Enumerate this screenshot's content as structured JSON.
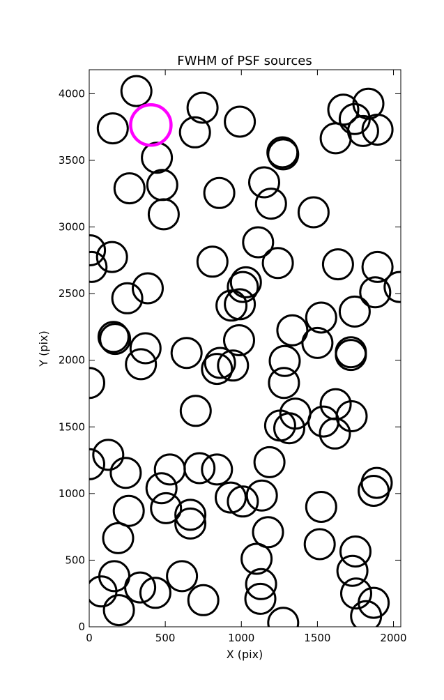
{
  "chart_data": {
    "type": "scatter",
    "title": "FWHM of PSF sources",
    "xlabel": "X (pix)",
    "ylabel": "Y (pix)",
    "xlim": [
      0,
      2048
    ],
    "ylim": [
      0,
      4180
    ],
    "xticks": [
      0,
      500,
      1000,
      1500,
      2000
    ],
    "yticks": [
      0,
      500,
      1000,
      1500,
      2000,
      2500,
      3000,
      3500,
      4000
    ],
    "grid": false,
    "marker": "open-circle",
    "series": [
      {
        "color": "#000000",
        "points": [
          {
            "x": 310,
            "y": 4020
          },
          {
            "x": 745,
            "y": 3895
          },
          {
            "x": 990,
            "y": 3790
          },
          {
            "x": 155,
            "y": 3740
          },
          {
            "x": 695,
            "y": 3710
          },
          {
            "x": 445,
            "y": 3520
          },
          {
            "x": 1270,
            "y": 3560
          },
          {
            "x": 1275,
            "y": 3545
          },
          {
            "x": 1670,
            "y": 3880
          },
          {
            "x": 1745,
            "y": 3810
          },
          {
            "x": 1835,
            "y": 3925
          },
          {
            "x": 1800,
            "y": 3720
          },
          {
            "x": 1895,
            "y": 3730
          },
          {
            "x": 1620,
            "y": 3665
          },
          {
            "x": 265,
            "y": 3290
          },
          {
            "x": 480,
            "y": 3315
          },
          {
            "x": 855,
            "y": 3255
          },
          {
            "x": 1150,
            "y": 3335
          },
          {
            "x": 1195,
            "y": 3175
          },
          {
            "x": 490,
            "y": 3095
          },
          {
            "x": 1475,
            "y": 3110
          },
          {
            "x": 5,
            "y": 2825
          },
          {
            "x": 15,
            "y": 2700
          },
          {
            "x": 150,
            "y": 2775
          },
          {
            "x": 810,
            "y": 2740
          },
          {
            "x": 1110,
            "y": 2885
          },
          {
            "x": 1240,
            "y": 2730
          },
          {
            "x": 1635,
            "y": 2720
          },
          {
            "x": 1895,
            "y": 2700
          },
          {
            "x": 2040,
            "y": 2550
          },
          {
            "x": 385,
            "y": 2540
          },
          {
            "x": 250,
            "y": 2465
          },
          {
            "x": 1030,
            "y": 2585
          },
          {
            "x": 1010,
            "y": 2550
          },
          {
            "x": 935,
            "y": 2410
          },
          {
            "x": 990,
            "y": 2420
          },
          {
            "x": 1880,
            "y": 2510
          },
          {
            "x": 1745,
            "y": 2365
          },
          {
            "x": 1525,
            "y": 2320
          },
          {
            "x": 1335,
            "y": 2225
          },
          {
            "x": 160,
            "y": 2175
          },
          {
            "x": 170,
            "y": 2160
          },
          {
            "x": 370,
            "y": 2090
          },
          {
            "x": 340,
            "y": 1970
          },
          {
            "x": 640,
            "y": 2055
          },
          {
            "x": 985,
            "y": 2150
          },
          {
            "x": 1500,
            "y": 2130
          },
          {
            "x": 1720,
            "y": 2060
          },
          {
            "x": 1720,
            "y": 2040
          },
          {
            "x": 1285,
            "y": 1995
          },
          {
            "x": 860,
            "y": 1980
          },
          {
            "x": 840,
            "y": 1935
          },
          {
            "x": 945,
            "y": 1960
          },
          {
            "x": 0,
            "y": 1830
          },
          {
            "x": 1280,
            "y": 1830
          },
          {
            "x": 700,
            "y": 1620
          },
          {
            "x": 1355,
            "y": 1600
          },
          {
            "x": 1620,
            "y": 1670
          },
          {
            "x": 1725,
            "y": 1580
          },
          {
            "x": 1540,
            "y": 1540
          },
          {
            "x": 1255,
            "y": 1510
          },
          {
            "x": 1315,
            "y": 1490
          },
          {
            "x": 1615,
            "y": 1450
          },
          {
            "x": 0,
            "y": 1220
          },
          {
            "x": 125,
            "y": 1290
          },
          {
            "x": 240,
            "y": 1155
          },
          {
            "x": 530,
            "y": 1180
          },
          {
            "x": 725,
            "y": 1190
          },
          {
            "x": 840,
            "y": 1180
          },
          {
            "x": 1185,
            "y": 1235
          },
          {
            "x": 475,
            "y": 1040
          },
          {
            "x": 1890,
            "y": 1080
          },
          {
            "x": 1870,
            "y": 1020
          },
          {
            "x": 930,
            "y": 970
          },
          {
            "x": 1010,
            "y": 940
          },
          {
            "x": 1135,
            "y": 985
          },
          {
            "x": 505,
            "y": 890
          },
          {
            "x": 260,
            "y": 870
          },
          {
            "x": 1525,
            "y": 900
          },
          {
            "x": 665,
            "y": 840
          },
          {
            "x": 665,
            "y": 775
          },
          {
            "x": 1175,
            "y": 710
          },
          {
            "x": 190,
            "y": 665
          },
          {
            "x": 1515,
            "y": 620
          },
          {
            "x": 1750,
            "y": 565
          },
          {
            "x": 1100,
            "y": 510
          },
          {
            "x": 1730,
            "y": 420
          },
          {
            "x": 165,
            "y": 380
          },
          {
            "x": 610,
            "y": 380
          },
          {
            "x": 1130,
            "y": 320
          },
          {
            "x": 335,
            "y": 295
          },
          {
            "x": 80,
            "y": 265
          },
          {
            "x": 435,
            "y": 255
          },
          {
            "x": 1755,
            "y": 250
          },
          {
            "x": 1125,
            "y": 210
          },
          {
            "x": 750,
            "y": 200
          },
          {
            "x": 195,
            "y": 125
          },
          {
            "x": 1870,
            "y": 180
          },
          {
            "x": 1820,
            "y": 80
          },
          {
            "x": 1275,
            "y": 30
          }
        ]
      },
      {
        "color": "#ff00ff",
        "points": [
          {
            "x": 405,
            "y": 3765
          }
        ]
      }
    ]
  }
}
